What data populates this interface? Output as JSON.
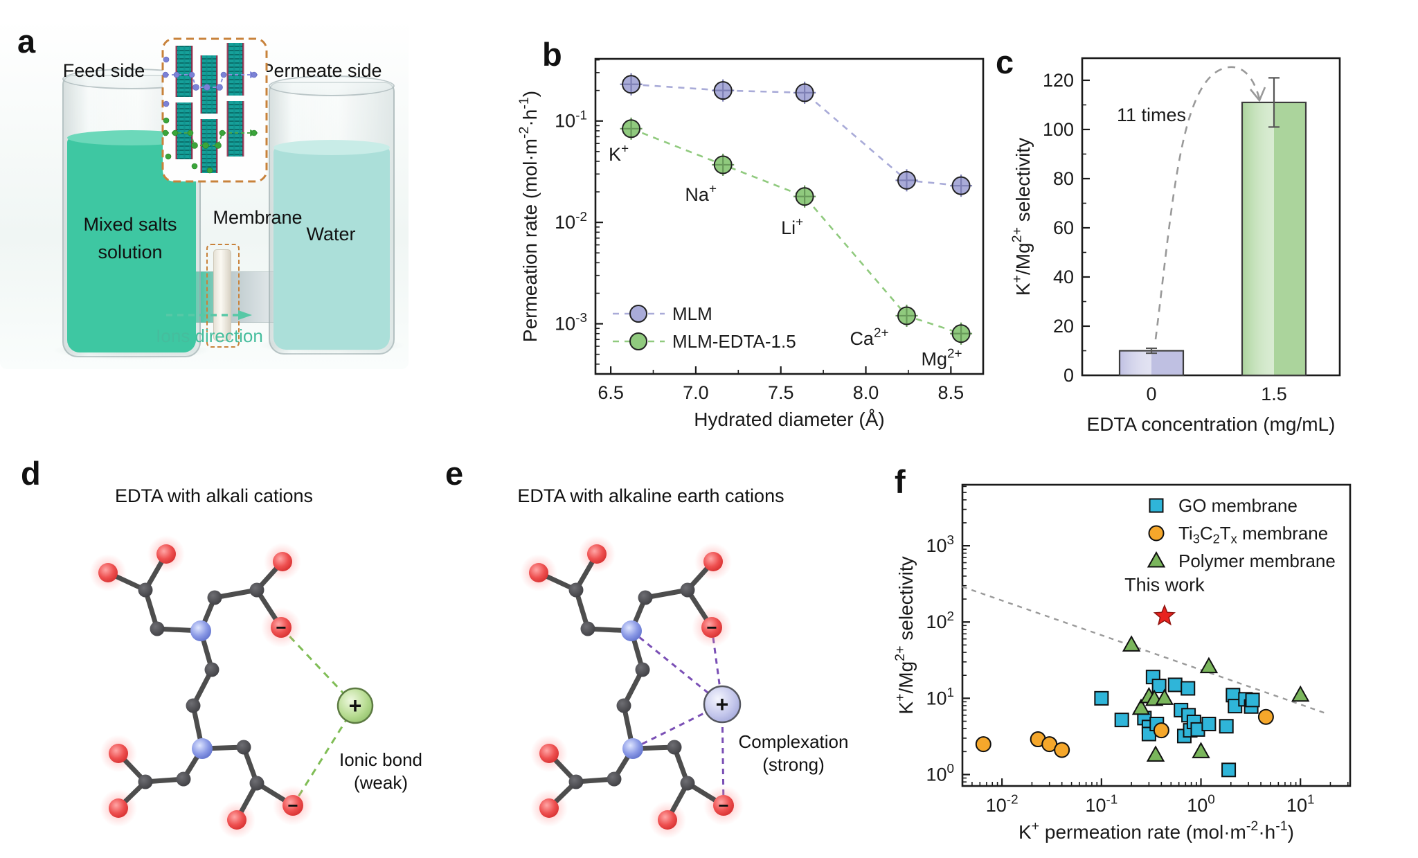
{
  "molecule": {
    "minus": "−"
  },
  "panels": {
    "a": {
      "label": "a",
      "feed_title": "Feed side",
      "permeate_title": "Permeate side",
      "feed_line1": "Mixed salts",
      "feed_line2": "solution",
      "water": "Water",
      "membrane": "Membrane",
      "ions_direction": "Ions direction",
      "colors": {
        "feed_liquid": "#3ec7a2",
        "permeate_liquid": "#abdfd9",
        "ions_text": "#45bd9d",
        "inset_border": "#c8823b"
      }
    },
    "b": {
      "label": "b"
    },
    "c": {
      "label": "c"
    },
    "d": {
      "label": "d",
      "title": "EDTA with alkali cations",
      "cation": "+",
      "bond_line1": "Ionic bond",
      "bond_line2": "(weak)",
      "cation_color": "#a8d08d",
      "bond_color": "#80bd56"
    },
    "e": {
      "label": "e",
      "title": "EDTA with alkaline earth cations",
      "cation": "+",
      "bond_line1": "Complexation",
      "bond_line2": "(strong)",
      "cation_color": "#bdc0e8",
      "bond_color": "#7a4fb5"
    },
    "f": {
      "label": "f"
    }
  },
  "chart_data": [
    {
      "id": "b",
      "type": "scatter",
      "title": "",
      "xlabel": "Hydrated diameter (Å)",
      "ylabel": "Permeation rate (mol·m^{-2}·h^{-1})",
      "xscale": "linear",
      "yscale": "log",
      "xlim": [
        6.41,
        8.69
      ],
      "ylim": [
        0.00032,
        0.41
      ],
      "xticks": [
        {
          "v": 6.5,
          "label": "6.5"
        },
        {
          "v": 7.0,
          "label": "7.0"
        },
        {
          "v": 7.5,
          "label": "7.5"
        },
        {
          "v": 8.0,
          "label": "8.0"
        },
        {
          "v": 8.5,
          "label": "8.5"
        }
      ],
      "ytick_exponents": [
        -1,
        -2,
        -3
      ],
      "x": [
        6.62,
        7.16,
        7.64,
        8.24,
        8.56
      ],
      "point_labels": [
        "K^{+}",
        "Na^{+}",
        "Li^{+}",
        "Ca^{2+}",
        "Mg^{2+}"
      ],
      "series": [
        {
          "name": "MLM",
          "color": "#a9abd8",
          "shade": "#7e80b5",
          "values": [
            0.23,
            0.2,
            0.19,
            0.026,
            0.023
          ]
        },
        {
          "name": "MLM-EDTA-1.5",
          "color": "#90ca7e",
          "shade": "#68995a",
          "values": [
            0.084,
            0.037,
            0.018,
            0.0012,
            0.0008
          ]
        }
      ],
      "legend_position": "lower left",
      "grid": false
    },
    {
      "id": "c",
      "type": "bar",
      "title": "",
      "xlabel": "EDTA concentration (mg/mL)",
      "ylabel": "K^{+}/Mg^{2+} selectivity",
      "categories": [
        "0",
        "1.5"
      ],
      "values": [
        10,
        111
      ],
      "errors": [
        1,
        10
      ],
      "bar_colors": [
        "#bfc0e2",
        "#abd49c"
      ],
      "bar_edge": "#3c3c3c",
      "ylim": [
        0,
        129
      ],
      "yticks": [
        0,
        20,
        40,
        60,
        80,
        100,
        120
      ],
      "annotation": "11 times",
      "grid": false
    },
    {
      "id": "f",
      "type": "scatter",
      "title": "",
      "xlabel": "K^{+} permeation rate (mol·m^{-2}·h^{-1})",
      "ylabel": "K^{+}/Mg^{2+} selectivity",
      "xscale": "log",
      "yscale": "log",
      "xlim": [
        0.004,
        31.6
      ],
      "ylim": [
        0.708,
        6310
      ],
      "xtick_exponents": [
        -2,
        -1,
        0,
        1
      ],
      "ytick_exponents": [
        0,
        1,
        2,
        3
      ],
      "legend_position": "upper right",
      "series": [
        {
          "name": "GO membrane",
          "marker": "square",
          "color": "#2fb5d9",
          "points": [
            [
              0.1,
              10
            ],
            [
              0.16,
              5.2
            ],
            [
              0.27,
              5.5
            ],
            [
              0.3,
              4.2
            ],
            [
              0.3,
              3.4
            ],
            [
              0.33,
              19
            ],
            [
              0.38,
              14.5
            ],
            [
              0.36,
              4.6
            ],
            [
              0.55,
              15
            ],
            [
              0.63,
              7
            ],
            [
              0.68,
              3.2
            ],
            [
              0.74,
              13.5
            ],
            [
              0.75,
              6
            ],
            [
              0.78,
              3.8
            ],
            [
              0.85,
              4.9
            ],
            [
              0.93,
              3.9
            ],
            [
              1.2,
              4.6
            ],
            [
              1.8,
              4.3
            ],
            [
              1.9,
              1.15
            ],
            [
              2.1,
              11
            ],
            [
              2.2,
              7.9
            ],
            [
              2.8,
              9.7
            ],
            [
              3.2,
              7.8
            ],
            [
              3.3,
              9.5
            ]
          ]
        },
        {
          "name": "Ti_{3}C_{2}T_{x} membrane",
          "marker": "circle",
          "color": "#f5a72b",
          "points": [
            [
              0.0065,
              2.5
            ],
            [
              0.023,
              2.9
            ],
            [
              0.03,
              2.5
            ],
            [
              0.04,
              2.1
            ],
            [
              0.4,
              3.8
            ],
            [
              4.5,
              5.7
            ]
          ]
        },
        {
          "name": "Polymer membrane",
          "marker": "triangle",
          "color": "#7ab65c",
          "points": [
            [
              0.2,
              50
            ],
            [
              0.25,
              7.4
            ],
            [
              0.3,
              10.5
            ],
            [
              0.34,
              9.7
            ],
            [
              0.43,
              10
            ],
            [
              1.2,
              26
            ],
            [
              0.35,
              1.8
            ],
            [
              1.0,
              2.0
            ],
            [
              10,
              11
            ]
          ]
        }
      ],
      "this_work": {
        "label": "This work",
        "x": 0.43,
        "y": 120,
        "color": "#e8231f"
      },
      "trend_line": {
        "x1": 0.004,
        "y1": 290,
        "x2": 19,
        "y2": 6.2,
        "color": "#9a9a9a",
        "style": "dashed"
      },
      "grid": false
    }
  ]
}
